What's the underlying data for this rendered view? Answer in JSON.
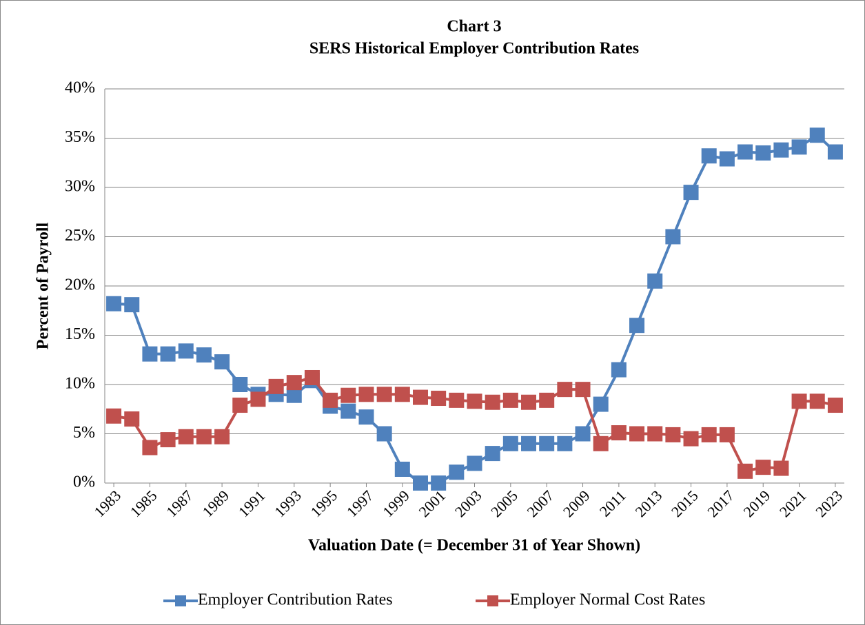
{
  "chart_data": {
    "type": "line",
    "title": "Chart 3",
    "subtitle": "SERS Historical Employer Contribution Rates",
    "x_label": "Valuation Date (= December 31 of Year Shown)",
    "y_label": "Percent of Payroll",
    "x": [
      1983,
      1984,
      1985,
      1986,
      1987,
      1988,
      1989,
      1990,
      1991,
      1992,
      1993,
      1994,
      1995,
      1996,
      1997,
      1998,
      1999,
      2000,
      2001,
      2002,
      2003,
      2004,
      2005,
      2006,
      2007,
      2008,
      2009,
      2010,
      2011,
      2012,
      2013,
      2014,
      2015,
      2016,
      2017,
      2018,
      2019,
      2020,
      2021,
      2022,
      2023
    ],
    "xlim": [
      1982.5,
      2023.5
    ],
    "xticks": [
      1983,
      1985,
      1987,
      1989,
      1991,
      1993,
      1995,
      1997,
      1999,
      2001,
      2003,
      2005,
      2007,
      2009,
      2011,
      2013,
      2015,
      2017,
      2019,
      2021,
      2023
    ],
    "ylim": [
      0,
      40
    ],
    "yticks": [
      {
        "value": 0,
        "label": "0%"
      },
      {
        "value": 5,
        "label": "5%"
      },
      {
        "value": 10,
        "label": "10%"
      },
      {
        "value": 15,
        "label": "15%"
      },
      {
        "value": 20,
        "label": "20%"
      },
      {
        "value": 25,
        "label": "25%"
      },
      {
        "value": 30,
        "label": "30%"
      },
      {
        "value": 35,
        "label": "35%"
      },
      {
        "value": 40,
        "label": "40%"
      }
    ],
    "grid": true,
    "legend": "bottom",
    "series": [
      {
        "name": "Employer Contribution Rates",
        "color": "#4f81bd",
        "values": [
          18.2,
          18.1,
          13.1,
          13.1,
          13.4,
          13.0,
          12.3,
          10.0,
          9.0,
          9.0,
          8.9,
          10.4,
          7.8,
          7.3,
          6.7,
          5.0,
          1.4,
          0,
          0,
          1.1,
          2.0,
          3.0,
          4.0,
          4.0,
          4.0,
          4.0,
          5.0,
          8.0,
          11.5,
          16.0,
          20.5,
          25.0,
          29.5,
          33.2,
          32.9,
          33.6,
          33.5,
          33.8,
          34.1,
          35.3,
          33.6
        ]
      },
      {
        "name": "Employer Normal Cost Rates",
        "color": "#c0504d",
        "values": [
          6.8,
          6.5,
          3.6,
          4.4,
          4.7,
          4.7,
          4.7,
          7.9,
          8.5,
          9.8,
          10.2,
          10.7,
          8.4,
          8.9,
          9.0,
          9.0,
          9.0,
          8.7,
          8.6,
          8.4,
          8.3,
          8.2,
          8.4,
          8.2,
          8.4,
          9.5,
          9.5,
          4.0,
          5.1,
          5.0,
          5.0,
          4.9,
          4.5,
          4.9,
          4.9,
          1.2,
          1.6,
          1.5,
          8.3,
          8.3,
          7.9
        ]
      }
    ]
  }
}
